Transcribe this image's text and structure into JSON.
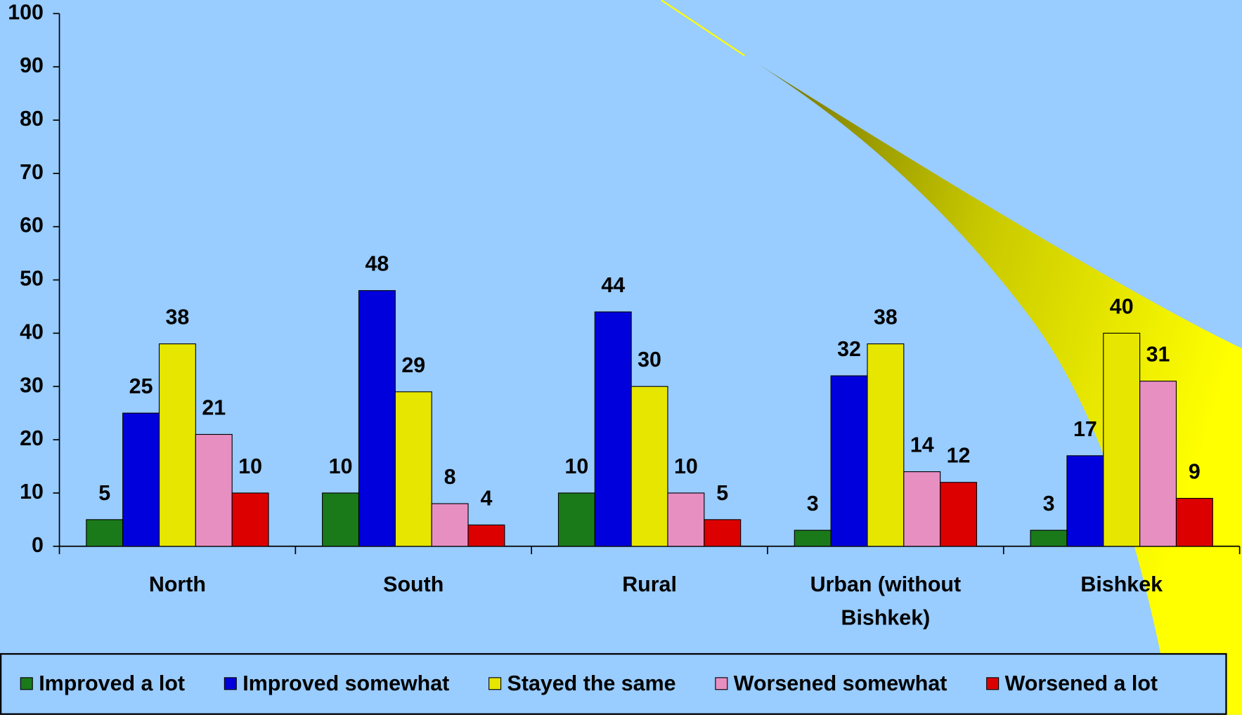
{
  "chart_data": {
    "type": "bar",
    "categories": [
      "North",
      "South",
      "Rural",
      "Urban (without Bishkek)",
      "Bishkek"
    ],
    "series": [
      {
        "name": "Improved a lot",
        "color": "#1a7a1a",
        "values": [
          5,
          10,
          10,
          3,
          3
        ]
      },
      {
        "name": "Improved somewhat",
        "color": "#0000dd",
        "values": [
          25,
          48,
          44,
          32,
          17
        ]
      },
      {
        "name": "Stayed the same",
        "color": "#e6e600",
        "values": [
          38,
          29,
          30,
          38,
          40
        ]
      },
      {
        "name": "Worsened somewhat",
        "color": "#e88fc2",
        "values": [
          21,
          8,
          10,
          14,
          31
        ]
      },
      {
        "name": "Worsened a lot",
        "color": "#dd0000",
        "values": [
          10,
          4,
          5,
          12,
          9
        ]
      }
    ],
    "ylim": [
      0,
      100
    ],
    "yticks": [
      0,
      10,
      20,
      30,
      40,
      50,
      60,
      70,
      80,
      90,
      100
    ],
    "legend": "bottom"
  }
}
